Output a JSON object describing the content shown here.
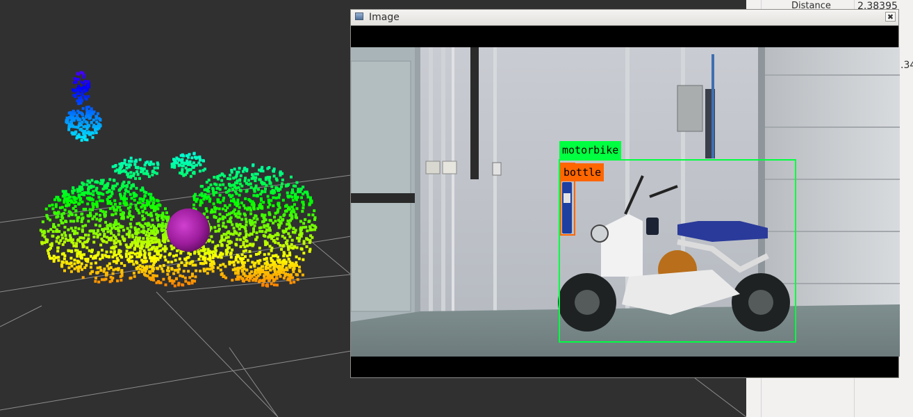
{
  "app": {
    "point_cloud_viewport": {
      "label": "3D point cloud view"
    }
  },
  "side_panel": {
    "row_label": "Distance",
    "row_value": "2.38395",
    "partial_value": ".34"
  },
  "image_window": {
    "title": "Image",
    "close_glyph": "✖"
  },
  "detections": [
    {
      "label": "motorbike",
      "color": "#00ff40"
    },
    {
      "label": "bottle",
      "color": "#ff6600"
    }
  ],
  "colors": {
    "viewport_bg": "#303030",
    "grid": "#9a9a9a",
    "marker": "#a020a0"
  }
}
